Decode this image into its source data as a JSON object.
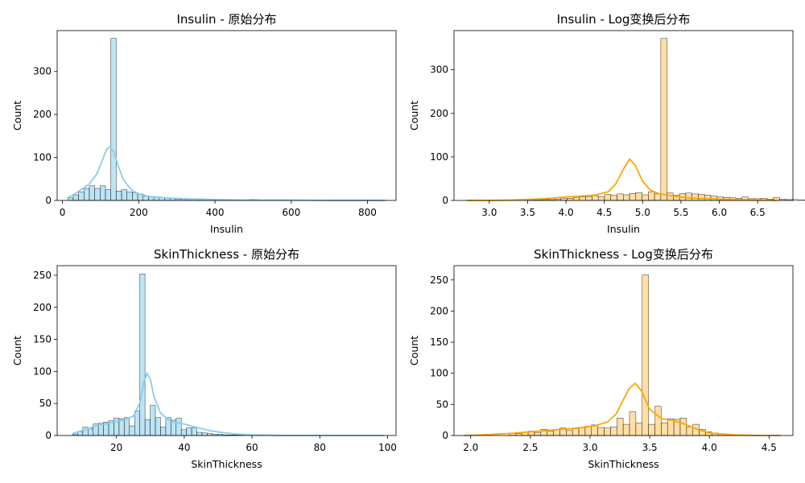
{
  "chart_data": [
    {
      "type": "bar",
      "title": "Insulin - 原始分布",
      "xlabel": "Insulin",
      "ylabel": "Count",
      "xlim": [
        -14,
        875
      ],
      "ylim": [
        0,
        395
      ],
      "xticks": [
        0,
        200,
        400,
        600,
        800
      ],
      "yticks": [
        0,
        100,
        200,
        300
      ],
      "bar_color": "#87CEEB",
      "kde_color": "#87CEEB",
      "bin_start": 14,
      "bin_width": 14.1,
      "values": [
        6,
        13,
        20,
        28,
        34,
        28,
        34,
        25,
        377,
        22,
        25,
        20,
        18,
        15,
        10,
        8,
        7,
        6,
        5,
        5,
        3,
        3,
        3,
        4,
        2,
        2,
        2,
        1,
        2,
        1,
        1,
        1,
        1,
        1,
        1,
        1,
        1,
        1,
        1,
        1,
        1,
        1,
        1,
        1,
        1,
        1,
        1,
        1,
        1,
        1,
        1,
        1,
        1,
        1,
        1,
        1,
        1,
        1,
        1
      ],
      "kde": {
        "x": [
          14,
          30,
          50,
          70,
          90,
          105,
          115,
          125,
          135,
          145,
          160,
          180,
          200,
          230,
          270,
          320,
          400,
          480,
          500,
          520,
          600,
          700,
          845
        ],
        "y": [
          7,
          14,
          26,
          38,
          62,
          95,
          118,
          125,
          112,
          83,
          48,
          25,
          15,
          9,
          6,
          4,
          2,
          1,
          2,
          1,
          1,
          0,
          0
        ]
      }
    },
    {
      "type": "bar",
      "title": "Insulin - Log变换后分布",
      "xlabel": "Insulin",
      "ylabel": "Count",
      "xlim": [
        2.54,
        6.96
      ],
      "ylim": [
        0,
        390
      ],
      "xticks": [
        3.0,
        3.5,
        4.0,
        4.5,
        5.0,
        5.5,
        6.0,
        6.5
      ],
      "yticks": [
        0,
        100,
        200,
        300
      ],
      "bar_color": "#FFC55C",
      "kde_color": "#FFA500",
      "bin_start": 2.71,
      "bin_width": 0.0815,
      "values": [
        1,
        0,
        0,
        0,
        0,
        0,
        0,
        0,
        0,
        0,
        1,
        1,
        2,
        2,
        3,
        4,
        5,
        6,
        8,
        9,
        11,
        8,
        14,
        12,
        15,
        13,
        16,
        18,
        13,
        20,
        15,
        372,
        17,
        12,
        16,
        17,
        15,
        14,
        12,
        10,
        8,
        7,
        6,
        5,
        8,
        4,
        4,
        5,
        3,
        7,
        3,
        2,
        2,
        1,
        1,
        1,
        1,
        1,
        1,
        0,
        0,
        0
      ],
      "kde": {
        "x": [
          2.71,
          3.0,
          3.3,
          3.6,
          3.8,
          4.0,
          4.2,
          4.4,
          4.55,
          4.65,
          4.75,
          4.83,
          4.9,
          5.0,
          5.1,
          5.2,
          5.4,
          5.6,
          5.8,
          6.0,
          6.2,
          6.5,
          6.75
        ],
        "y": [
          0,
          0,
          1,
          3,
          5,
          8,
          10,
          13,
          20,
          38,
          72,
          95,
          82,
          44,
          24,
          16,
          10,
          6,
          4,
          3,
          2,
          1,
          0
        ]
      }
    },
    {
      "type": "bar",
      "title": "SkinThickness - 原始分布",
      "xlabel": "SkinThickness",
      "ylabel": "Count",
      "xlim": [
        2.5,
        102.5
      ],
      "ylim": [
        0,
        265
      ],
      "xticks": [
        20,
        40,
        60,
        80,
        100
      ],
      "yticks": [
        0,
        50,
        100,
        150,
        200,
        250
      ],
      "bar_color": "#87CEEB",
      "kde_color": "#87CEEB",
      "bin_start": 7,
      "bin_width": 1.53,
      "values": [
        2,
        6,
        13,
        11,
        18,
        19,
        21,
        23,
        27,
        26,
        28,
        15,
        38,
        252,
        25,
        47,
        28,
        13,
        28,
        24,
        27,
        9,
        12,
        12,
        5,
        4,
        3,
        2,
        2,
        1,
        1,
        1,
        1,
        0,
        0,
        0,
        0,
        0,
        0,
        0,
        0,
        0,
        0,
        0,
        0,
        0,
        0,
        0,
        0,
        0,
        0,
        0,
        0,
        0,
        0,
        0,
        0,
        0,
        0,
        0
      ],
      "kde": {
        "x": [
          7,
          10,
          14,
          18,
          22,
          25,
          27,
          28,
          29,
          30,
          31,
          33,
          36,
          40,
          44,
          48,
          52,
          56,
          60,
          70,
          80,
          99
        ],
        "y": [
          3,
          8,
          15,
          20,
          24,
          30,
          52,
          82,
          97,
          88,
          62,
          35,
          22,
          18,
          12,
          7,
          4,
          2,
          1,
          0,
          0,
          0
        ]
      }
    },
    {
      "type": "bar",
      "title": "SkinThickness - Log变换后分布",
      "xlabel": "SkinThickness",
      "ylabel": "Count",
      "xlim": [
        1.86,
        4.7
      ],
      "ylim": [
        0,
        273
      ],
      "xticks": [
        2.0,
        2.5,
        3.0,
        3.5,
        4.0,
        4.5
      ],
      "yticks": [
        0,
        50,
        100,
        150,
        200,
        250
      ],
      "bar_color": "#FFC55C",
      "kde_color": "#FFA500",
      "bin_start": 1.95,
      "bin_width": 0.0531,
      "values": [
        1,
        0,
        0,
        0,
        0,
        0,
        0,
        4,
        3,
        5,
        7,
        5,
        10,
        7,
        9,
        12,
        8,
        11,
        13,
        15,
        17,
        13,
        12,
        14,
        28,
        18,
        38,
        20,
        258,
        18,
        47,
        20,
        27,
        26,
        28,
        14,
        18,
        10,
        6,
        4,
        3,
        2,
        1,
        1,
        1,
        1,
        0,
        0,
        0,
        0
      ],
      "kde": {
        "x": [
          1.95,
          2.1,
          2.3,
          2.5,
          2.7,
          2.9,
          3.05,
          3.15,
          3.22,
          3.28,
          3.33,
          3.38,
          3.43,
          3.5,
          3.6,
          3.7,
          3.8,
          3.9,
          4.0,
          4.2,
          4.4,
          4.6
        ],
        "y": [
          0,
          1,
          3,
          6,
          9,
          12,
          16,
          22,
          35,
          58,
          76,
          84,
          72,
          42,
          27,
          24,
          18,
          10,
          4,
          1,
          0,
          0
        ]
      }
    }
  ]
}
